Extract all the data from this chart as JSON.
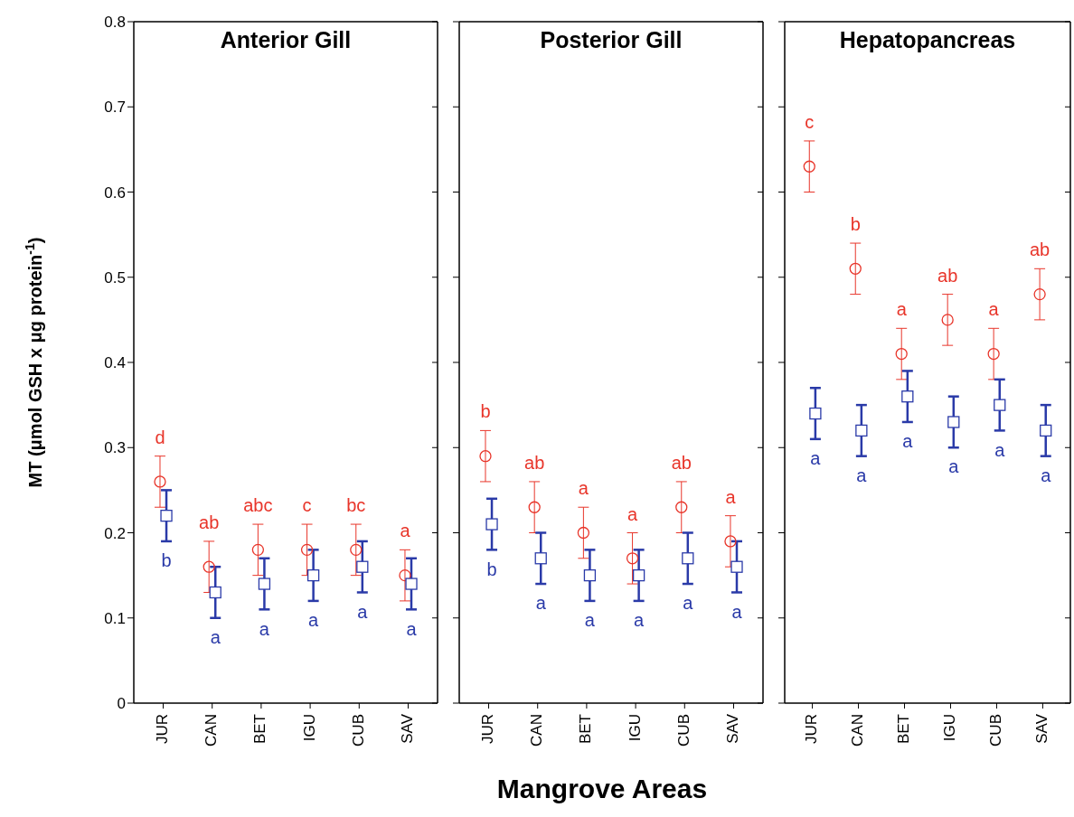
{
  "chart_data": [
    {
      "type": "scatter",
      "title": "Anterior Gill",
      "ylabel": "MT (μmol GSH x μg protein$^{-1}$)",
      "categories": [
        "JUR",
        "CAN",
        "BET",
        "IGU",
        "CUB",
        "SAV"
      ],
      "ylim": [
        0,
        0.8
      ],
      "yticks": [
        0,
        0.1,
        0.2,
        0.3,
        0.4,
        0.5,
        0.6,
        0.7,
        0.8
      ],
      "series": [
        {
          "color": "#e8352a",
          "marker": "circle",
          "values": [
            0.26,
            0.16,
            0.18,
            0.18,
            0.18,
            0.15
          ],
          "errors": [
            0.03,
            0.03,
            0.03,
            0.03,
            0.03,
            0.03
          ],
          "value_labels": [
            "d",
            "ab",
            "abc",
            "c",
            "bc",
            "a"
          ]
        },
        {
          "color": "#2a3aa8",
          "marker": "square",
          "values": [
            0.22,
            0.13,
            0.14,
            0.15,
            0.16,
            0.14
          ],
          "errors": [
            0.03,
            0.03,
            0.03,
            0.03,
            0.03,
            0.03
          ],
          "value_labels": [
            "b",
            "a",
            "a",
            "a",
            "a",
            "a"
          ]
        }
      ]
    },
    {
      "type": "scatter",
      "title": "Posterior Gill",
      "xlabel": "Mangrove Areas",
      "categories": [
        "JUR",
        "CAN",
        "BET",
        "IGU",
        "CUB",
        "SAV"
      ],
      "ylim": [
        0,
        0.8
      ],
      "yticks": [
        0,
        0.1,
        0.2,
        0.3,
        0.4,
        0.5,
        0.6,
        0.7,
        0.8
      ],
      "tick_labels": "x",
      "series": [
        {
          "color": "#e8352a",
          "marker": "circle",
          "values": [
            0.29,
            0.23,
            0.2,
            0.17,
            0.23,
            0.19
          ],
          "errors": [
            0.03,
            0.03,
            0.03,
            0.03,
            0.03,
            0.03
          ],
          "value_labels": [
            "b",
            "ab",
            "a",
            "a",
            "ab",
            "a"
          ]
        },
        {
          "color": "#2a3aa8",
          "marker": "square",
          "values": [
            0.21,
            0.17,
            0.15,
            0.15,
            0.17,
            0.16
          ],
          "errors": [
            0.03,
            0.03,
            0.03,
            0.03,
            0.03,
            0.03
          ],
          "value_labels": [
            "b",
            "a",
            "a",
            "a",
            "a",
            "a"
          ]
        }
      ]
    },
    {
      "type": "scatter",
      "title": "Hepatopancreas",
      "categories": [
        "JUR",
        "CAN",
        "BET",
        "IGU",
        "CUB",
        "SAV"
      ],
      "ylim": [
        0,
        0.8
      ],
      "yticks": [
        0,
        0.1,
        0.2,
        0.3,
        0.4,
        0.5,
        0.6,
        0.7,
        0.8
      ],
      "tick_labels": "x",
      "series": [
        {
          "color": "#e8352a",
          "marker": "circle",
          "values": [
            0.63,
            0.51,
            0.41,
            0.45,
            0.41,
            0.48
          ],
          "errors": [
            0.03,
            0.03,
            0.03,
            0.03,
            0.03,
            0.03
          ],
          "value_labels": [
            "c",
            "b",
            "a",
            "ab",
            "a",
            "ab"
          ]
        },
        {
          "color": "#2a3aa8",
          "marker": "square",
          "values": [
            0.34,
            0.32,
            0.36,
            0.33,
            0.35,
            0.32
          ],
          "errors": [
            0.03,
            0.03,
            0.03,
            0.03,
            0.03,
            0.03
          ],
          "value_labels": [
            "a",
            "a",
            "a",
            "a",
            "a",
            "a"
          ]
        }
      ]
    }
  ]
}
